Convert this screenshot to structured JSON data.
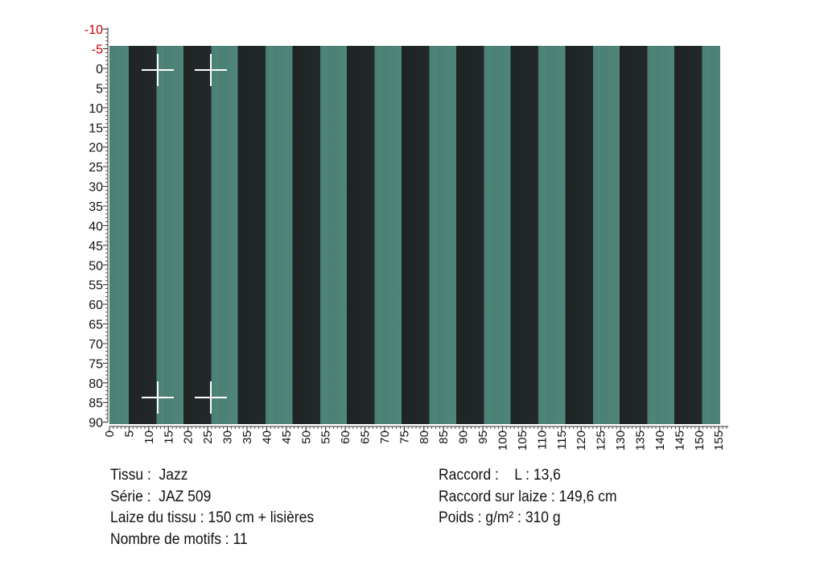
{
  "vertical_ruler": {
    "labels": [
      -10,
      -5,
      0,
      5,
      10,
      15,
      20,
      25,
      30,
      35,
      40,
      45,
      50,
      55,
      60,
      65,
      70,
      75,
      80,
      85,
      90
    ]
  },
  "horizontal_ruler": {
    "labels": [
      0,
      5,
      10,
      15,
      20,
      25,
      30,
      35,
      40,
      45,
      50,
      55,
      60,
      65,
      70,
      75,
      80,
      85,
      90,
      95,
      100,
      105,
      110,
      115,
      120,
      125,
      130,
      135,
      140,
      145,
      150,
      155
    ]
  },
  "info": {
    "left": [
      "Tissu :  Jazz",
      "Série :  JAZ 509",
      "Laize du tissu : 150 cm + lisières",
      "Nombre de motifs : 11"
    ],
    "right": [
      "Raccord :    L : 13,6",
      "Raccord sur laize : 149,6 cm",
      "Poids : g/m² : 310 g"
    ]
  }
}
